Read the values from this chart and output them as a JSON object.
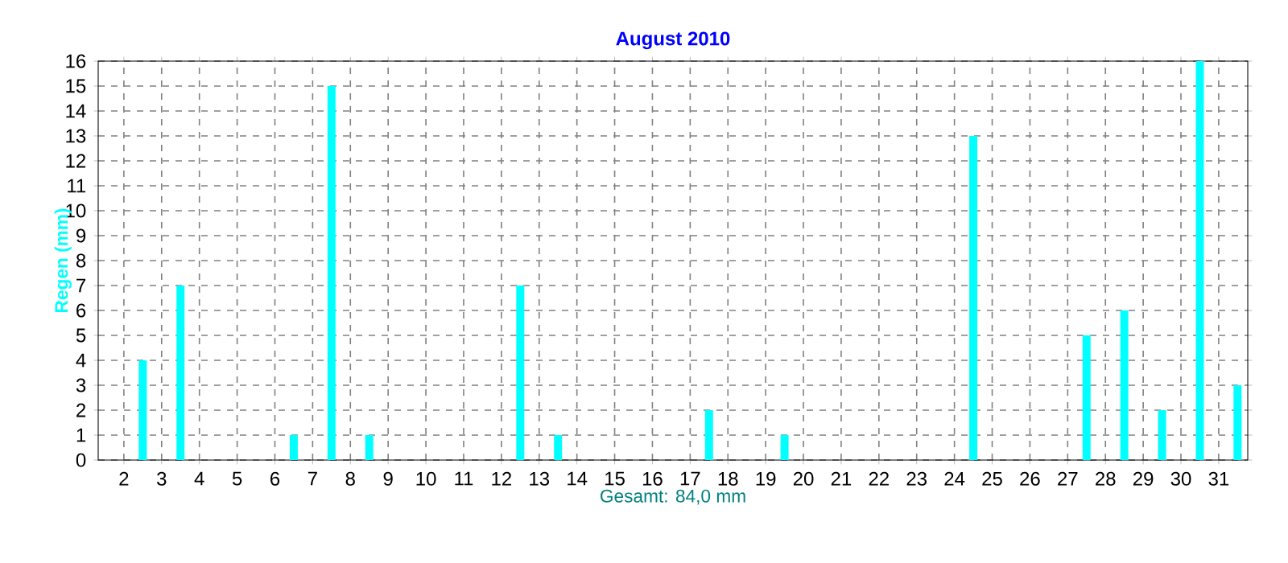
{
  "chart_data": {
    "type": "bar",
    "title": "August 2010",
    "ylabel": "Regen  (mm)",
    "xlabel": "Gesamt: 84,0 mm",
    "x": [
      1.5,
      2.5,
      3.5,
      4.5,
      5.5,
      6.5,
      7.5,
      8.5,
      9.5,
      10.5,
      11.5,
      12.5,
      13.5,
      14.5,
      15.5,
      16.5,
      17.5,
      18.5,
      19.5,
      20.5,
      21.5,
      22.5,
      23.5,
      24.5,
      25.5,
      26.5,
      27.5,
      28.5,
      29.5,
      30.5,
      31.5
    ],
    "values": [
      0,
      4,
      7,
      0,
      0,
      1,
      15,
      1,
      0,
      0,
      0,
      7,
      1,
      0,
      0,
      0,
      2,
      0,
      1,
      0,
      0,
      0,
      0,
      13,
      0,
      0,
      5,
      6,
      2,
      16,
      3
    ],
    "color": "#00ffff",
    "xlim": [
      1.32,
      31.77
    ],
    "xticks": [
      2,
      3,
      4,
      5,
      6,
      7,
      8,
      9,
      10,
      11,
      12,
      13,
      14,
      15,
      16,
      17,
      18,
      19,
      20,
      21,
      22,
      23,
      24,
      25,
      26,
      27,
      28,
      29,
      30,
      31
    ],
    "ylim": [
      0,
      16
    ],
    "yticks": [
      0,
      1,
      2,
      3,
      4,
      5,
      6,
      7,
      8,
      9,
      10,
      11,
      12,
      13,
      14,
      15,
      16
    ],
    "grid": true
  }
}
